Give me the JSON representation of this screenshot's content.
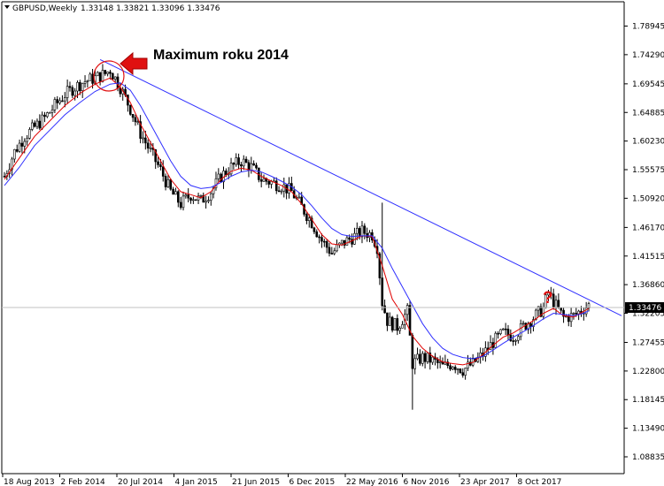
{
  "header": {
    "symbol": "GBPUSD,Weekly",
    "ohlc": "1.33148 1.33821 1.33096 1.33476"
  },
  "annotation": {
    "text": "Maximum roku 2014",
    "question_mark": "?",
    "arrow_color": "#e01010",
    "circle_color": "#e01010"
  },
  "current_price_label": "1.33476",
  "chart_data": {
    "type": "candlestick",
    "symbol": "GBPUSD",
    "timeframe": "Weekly",
    "ylim": [
      1.061,
      1.829
    ],
    "y_ticks": [
      "1.78945",
      "1.74290",
      "1.69545",
      "1.64885",
      "1.60230",
      "1.55575",
      "1.50920",
      "1.46170",
      "1.41515",
      "1.36860",
      "1.32205",
      "1.27455",
      "1.22800",
      "1.18145",
      "1.13490",
      "1.08835"
    ],
    "x_ticks": [
      "18 Aug 2013",
      "2 Feb 2014",
      "20 Jul 2014",
      "4 Jan 2015",
      "21 Jun 2015",
      "6 Dec 2015",
      "22 May 2016",
      "6 Nov 2016",
      "23 Apr 2017",
      "8 Oct 2017"
    ],
    "last_price": 1.33476,
    "series": [
      {
        "name": "close",
        "color": "#000000",
        "values": [
          [
            0,
            1.545
          ],
          [
            4,
            1.585
          ],
          [
            8,
            1.61
          ],
          [
            12,
            1.625
          ],
          [
            16,
            1.64
          ],
          [
            20,
            1.66
          ],
          [
            24,
            1.678
          ],
          [
            28,
            1.69
          ],
          [
            32,
            1.7
          ],
          [
            36,
            1.705
          ],
          [
            40,
            1.712
          ],
          [
            42,
            1.718
          ],
          [
            46,
            1.69
          ],
          [
            50,
            1.655
          ],
          [
            54,
            1.615
          ],
          [
            58,
            1.585
          ],
          [
            62,
            1.555
          ],
          [
            66,
            1.52
          ],
          [
            70,
            1.5
          ],
          [
            74,
            1.515
          ],
          [
            78,
            1.505
          ],
          [
            82,
            1.52
          ],
          [
            86,
            1.545
          ],
          [
            90,
            1.56
          ],
          [
            94,
            1.57
          ],
          [
            98,
            1.56
          ],
          [
            102,
            1.54
          ],
          [
            106,
            1.535
          ],
          [
            110,
            1.53
          ],
          [
            114,
            1.52
          ],
          [
            118,
            1.495
          ],
          [
            122,
            1.47
          ],
          [
            126,
            1.44
          ],
          [
            130,
            1.42
          ],
          [
            134,
            1.435
          ],
          [
            138,
            1.445
          ],
          [
            142,
            1.455
          ],
          [
            146,
            1.45
          ],
          [
            148,
            1.43
          ],
          [
            150,
            1.34
          ],
          [
            152,
            1.31
          ],
          [
            156,
            1.3
          ],
          [
            160,
            1.325
          ],
          [
            162,
            1.24
          ],
          [
            166,
            1.25
          ],
          [
            170,
            1.245
          ],
          [
            174,
            1.235
          ],
          [
            178,
            1.24
          ],
          [
            182,
            1.23
          ],
          [
            186,
            1.24
          ],
          [
            190,
            1.255
          ],
          [
            194,
            1.275
          ],
          [
            198,
            1.29
          ],
          [
            202,
            1.285
          ],
          [
            206,
            1.3
          ],
          [
            210,
            1.315
          ],
          [
            214,
            1.33
          ],
          [
            216,
            1.355
          ],
          [
            218,
            1.34
          ],
          [
            222,
            1.315
          ],
          [
            226,
            1.318
          ],
          [
            230,
            1.33
          ],
          [
            232,
            1.335
          ]
        ]
      },
      {
        "name": "moving average (fast)",
        "color": "#e00000",
        "values": [
          [
            0,
            1.54
          ],
          [
            6,
            1.575
          ],
          [
            12,
            1.61
          ],
          [
            18,
            1.635
          ],
          [
            24,
            1.66
          ],
          [
            30,
            1.68
          ],
          [
            36,
            1.695
          ],
          [
            42,
            1.705
          ],
          [
            46,
            1.69
          ],
          [
            50,
            1.665
          ],
          [
            54,
            1.63
          ],
          [
            58,
            1.6
          ],
          [
            62,
            1.57
          ],
          [
            66,
            1.54
          ],
          [
            70,
            1.52
          ],
          [
            74,
            1.515
          ],
          [
            78,
            1.51
          ],
          [
            82,
            1.52
          ],
          [
            86,
            1.54
          ],
          [
            90,
            1.553
          ],
          [
            94,
            1.558
          ],
          [
            98,
            1.555
          ],
          [
            102,
            1.545
          ],
          [
            106,
            1.537
          ],
          [
            110,
            1.53
          ],
          [
            114,
            1.52
          ],
          [
            118,
            1.5
          ],
          [
            122,
            1.475
          ],
          [
            126,
            1.45
          ],
          [
            130,
            1.435
          ],
          [
            134,
            1.433
          ],
          [
            138,
            1.44
          ],
          [
            142,
            1.448
          ],
          [
            146,
            1.447
          ],
          [
            150,
            1.4
          ],
          [
            154,
            1.345
          ],
          [
            158,
            1.32
          ],
          [
            162,
            1.285
          ],
          [
            166,
            1.265
          ],
          [
            170,
            1.252
          ],
          [
            174,
            1.243
          ],
          [
            178,
            1.24
          ],
          [
            182,
            1.238
          ],
          [
            186,
            1.242
          ],
          [
            190,
            1.255
          ],
          [
            194,
            1.27
          ],
          [
            198,
            1.283
          ],
          [
            202,
            1.29
          ],
          [
            206,
            1.3
          ],
          [
            210,
            1.31
          ],
          [
            214,
            1.322
          ],
          [
            218,
            1.33
          ],
          [
            222,
            1.318
          ],
          [
            226,
            1.316
          ],
          [
            230,
            1.325
          ],
          [
            232,
            1.33
          ]
        ]
      },
      {
        "name": "moving average (slow)",
        "color": "#3030ff",
        "values": [
          [
            0,
            1.53
          ],
          [
            6,
            1.56
          ],
          [
            12,
            1.595
          ],
          [
            18,
            1.62
          ],
          [
            24,
            1.645
          ],
          [
            30,
            1.665
          ],
          [
            36,
            1.683
          ],
          [
            42,
            1.695
          ],
          [
            46,
            1.697
          ],
          [
            50,
            1.685
          ],
          [
            54,
            1.66
          ],
          [
            58,
            1.63
          ],
          [
            62,
            1.6
          ],
          [
            66,
            1.57
          ],
          [
            70,
            1.545
          ],
          [
            74,
            1.53
          ],
          [
            78,
            1.525
          ],
          [
            82,
            1.527
          ],
          [
            86,
            1.535
          ],
          [
            90,
            1.545
          ],
          [
            94,
            1.552
          ],
          [
            98,
            1.555
          ],
          [
            102,
            1.552
          ],
          [
            106,
            1.545
          ],
          [
            110,
            1.537
          ],
          [
            114,
            1.528
          ],
          [
            118,
            1.515
          ],
          [
            122,
            1.497
          ],
          [
            126,
            1.477
          ],
          [
            130,
            1.46
          ],
          [
            134,
            1.45
          ],
          [
            138,
            1.447
          ],
          [
            142,
            1.448
          ],
          [
            146,
            1.448
          ],
          [
            150,
            1.428
          ],
          [
            154,
            1.395
          ],
          [
            158,
            1.365
          ],
          [
            162,
            1.335
          ],
          [
            166,
            1.305
          ],
          [
            170,
            1.282
          ],
          [
            174,
            1.265
          ],
          [
            178,
            1.255
          ],
          [
            182,
            1.25
          ],
          [
            186,
            1.248
          ],
          [
            190,
            1.252
          ],
          [
            194,
            1.262
          ],
          [
            198,
            1.273
          ],
          [
            202,
            1.283
          ],
          [
            206,
            1.292
          ],
          [
            210,
            1.302
          ],
          [
            214,
            1.313
          ],
          [
            218,
            1.322
          ],
          [
            222,
            1.32
          ],
          [
            226,
            1.318
          ],
          [
            230,
            1.322
          ],
          [
            232,
            1.326
          ]
        ]
      },
      {
        "name": "trendline",
        "color": "#3030ff",
        "values": [
          [
            38,
            1.735
          ],
          [
            245,
            1.318
          ]
        ]
      }
    ]
  }
}
